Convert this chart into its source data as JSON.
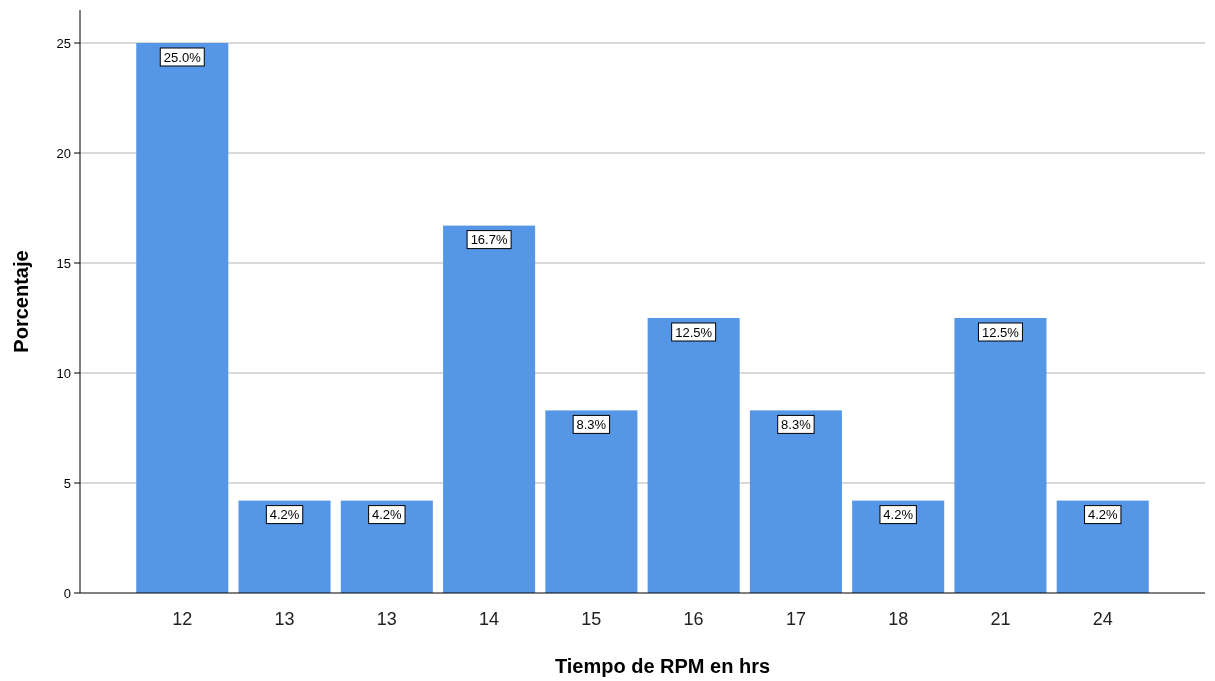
{
  "chart_data": {
    "type": "bar",
    "xlabel": "Tiempo de RPM en hrs",
    "ylabel": "Porcentaje",
    "categories": [
      "12",
      "13",
      "13",
      "14",
      "15",
      "16",
      "17",
      "18",
      "21",
      "24"
    ],
    "values": [
      25.0,
      4.2,
      4.2,
      16.7,
      8.3,
      12.5,
      8.3,
      4.2,
      12.5,
      4.2
    ],
    "value_labels": [
      "25.0%",
      "4.2%",
      "4.2%",
      "16.7%",
      "8.3%",
      "12.5%",
      "8.3%",
      "4.2%",
      "12.5%",
      "4.2%"
    ],
    "color": "#5596e6",
    "ylim": [
      0,
      26.5
    ],
    "yticks": [
      0,
      5,
      10,
      15,
      20,
      25
    ],
    "grid": "y"
  }
}
